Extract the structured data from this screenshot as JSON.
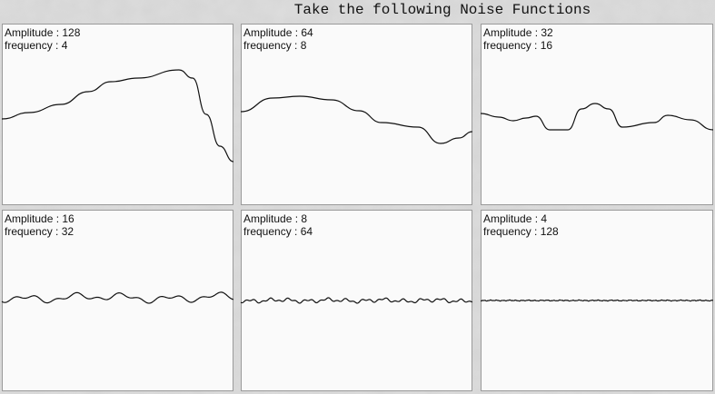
{
  "title": "Take the following Noise Functions",
  "panels": [
    {
      "lines": [
        "Amplitude : 128",
        "frequency : 4"
      ]
    },
    {
      "lines": [
        "Amplitude : 64",
        "frequency : 8"
      ]
    },
    {
      "lines": [
        "Amplitude : 32",
        "frequency : 16"
      ]
    },
    {
      "lines": [
        "Amplitude : 16",
        "frequency : 32"
      ]
    },
    {
      "lines": [
        "Amplitude : 8",
        "frequency : 64"
      ]
    },
    {
      "lines": [
        "Amplitude : 4",
        "frequency : 128"
      ]
    }
  ]
}
